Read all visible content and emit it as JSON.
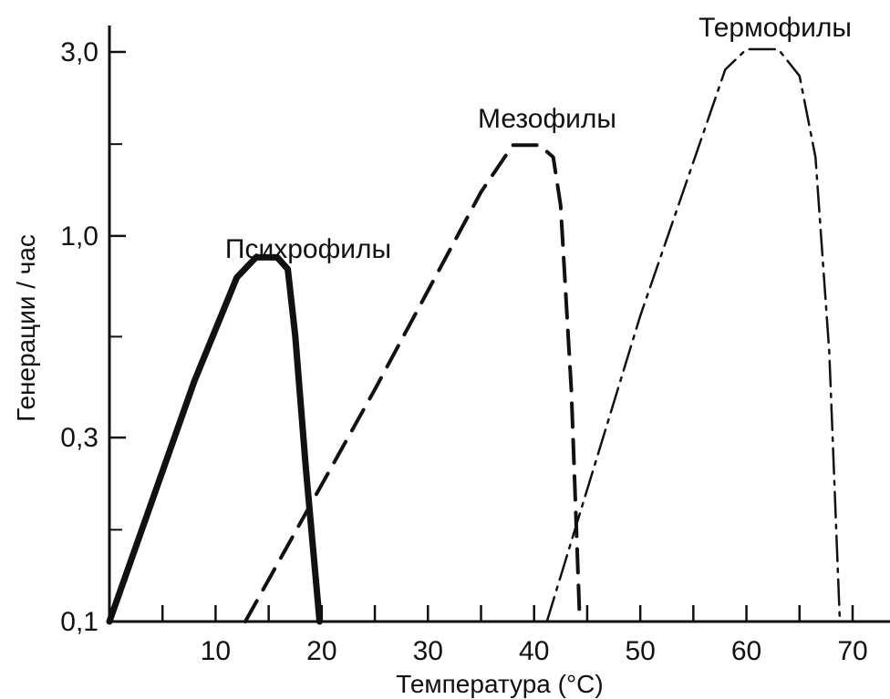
{
  "chart_data": {
    "type": "line",
    "title": "",
    "xlabel": "Температура (°C)",
    "ylabel": "Генерации / час",
    "y_scale": "log",
    "xlim": [
      -0.5,
      72
    ],
    "ylim": [
      0.1,
      3.6
    ],
    "x_ticks": [
      10,
      20,
      30,
      40,
      50,
      60,
      70
    ],
    "y_ticks": [
      0.1,
      0.3,
      1.0,
      3.0
    ],
    "y_tick_labels": [
      "0,1",
      "0,3",
      "1,0",
      "3,0"
    ],
    "grid": false,
    "series": [
      {
        "name": "Психрофилы",
        "line_style": "solid-thick",
        "points": [
          [
            0,
            0.1
          ],
          [
            8,
            0.42
          ],
          [
            12,
            0.78
          ],
          [
            13.8,
            0.88
          ],
          [
            15.8,
            0.88
          ],
          [
            16.8,
            0.82
          ],
          [
            17.5,
            0.55
          ],
          [
            18.5,
            0.25
          ],
          [
            19.8,
            0.1
          ]
        ]
      },
      {
        "name": "Мезофилы",
        "line_style": "dashed",
        "points": [
          [
            12.8,
            0.1
          ],
          [
            25,
            0.4
          ],
          [
            35,
            1.3
          ],
          [
            38,
            1.72
          ],
          [
            40.5,
            1.72
          ],
          [
            41.8,
            1.6
          ],
          [
            42.5,
            1.2
          ],
          [
            43.5,
            0.4
          ],
          [
            44.3,
            0.1
          ]
        ]
      },
      {
        "name": "Термофилы",
        "line_style": "dash-dot",
        "points": [
          [
            41.2,
            0.1
          ],
          [
            50,
            0.62
          ],
          [
            58,
            2.7
          ],
          [
            60,
            3.05
          ],
          [
            63,
            3.05
          ],
          [
            65,
            2.6
          ],
          [
            66.5,
            1.6
          ],
          [
            67.8,
            0.5
          ],
          [
            68.8,
            0.1
          ]
        ]
      }
    ]
  }
}
